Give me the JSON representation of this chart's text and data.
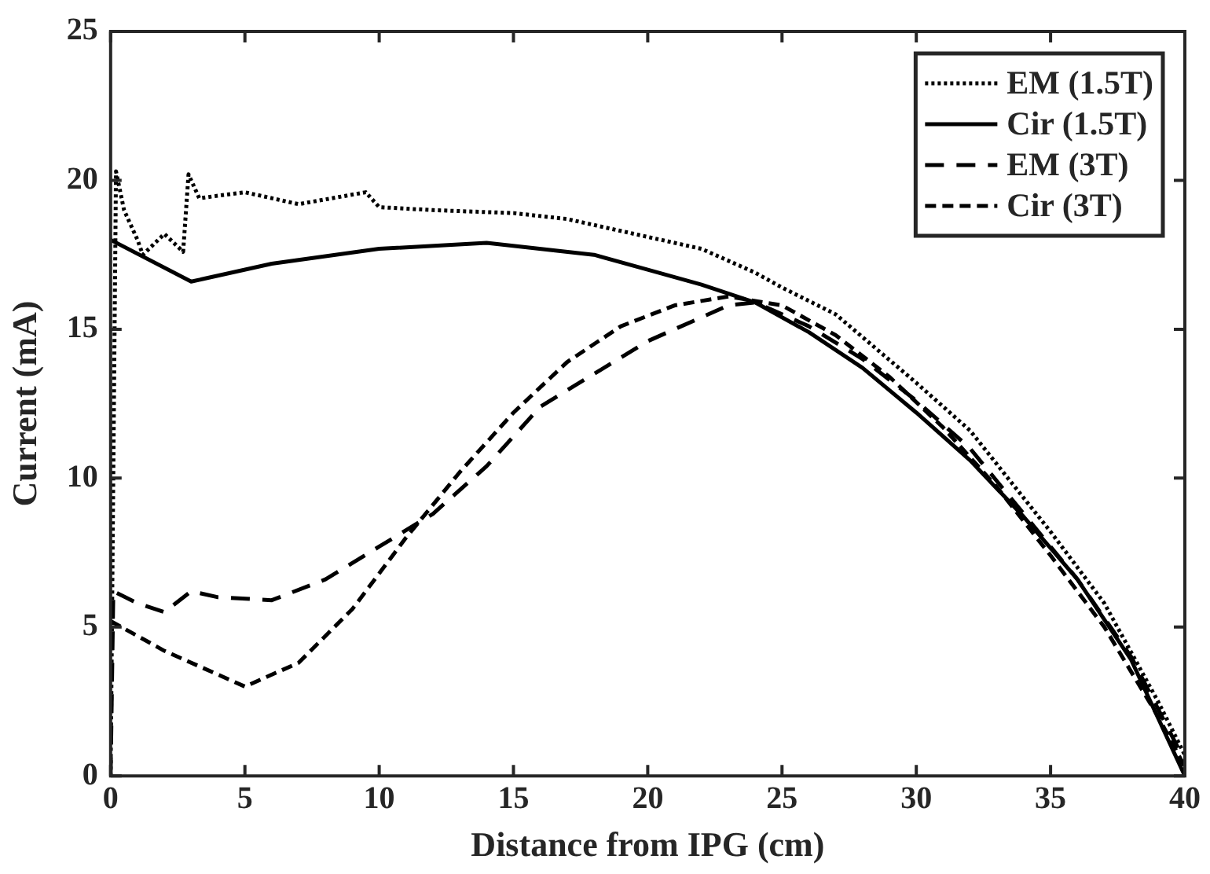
{
  "chart_data": {
    "type": "line",
    "xlabel": "Distance from IPG (cm)",
    "ylabel": "Current (mA)",
    "xlim": [
      0,
      40
    ],
    "ylim": [
      0,
      25
    ],
    "xticks": [
      0,
      5,
      10,
      15,
      20,
      25,
      30,
      35,
      40
    ],
    "yticks": [
      0,
      5,
      10,
      15,
      20,
      25
    ],
    "grid": false,
    "legend": "top right",
    "marker": "none",
    "series": [
      {
        "name": "EM (1.5T)",
        "color": "#000000",
        "line_style": "dotted",
        "x": [
          0,
          0.2,
          0.5,
          1,
          1.2,
          2,
          2.7,
          2.9,
          3.3,
          5,
          7,
          9.5,
          10,
          12,
          15,
          17,
          20,
          22,
          24,
          25,
          27,
          30,
          32,
          35,
          37,
          39,
          40
        ],
        "values": [
          0,
          20.3,
          19,
          18,
          17.5,
          18.2,
          17.6,
          20.2,
          19.4,
          19.6,
          19.2,
          19.6,
          19.1,
          19,
          18.9,
          18.7,
          18.1,
          17.7,
          16.9,
          16.4,
          15.5,
          13.2,
          11.6,
          8.2,
          5.8,
          2.5,
          0.7
        ]
      },
      {
        "name": "Cir (1.5T)",
        "color": "#000000",
        "line_style": "solid",
        "x": [
          0,
          3,
          6,
          10,
          14,
          18,
          20,
          22,
          24,
          26,
          28,
          30,
          32,
          34,
          36,
          38,
          40
        ],
        "values": [
          18,
          16.6,
          17.2,
          17.7,
          17.9,
          17.5,
          17,
          16.5,
          15.9,
          14.9,
          13.7,
          12.2,
          10.6,
          8.7,
          6.6,
          3.9,
          0
        ]
      },
      {
        "name": "EM (3T)",
        "color": "#000000",
        "line_style": "dashed",
        "x": [
          0,
          0.1,
          1,
          2,
          3,
          4,
          6,
          8,
          10,
          12,
          14,
          16,
          18,
          20,
          22,
          23,
          24,
          26,
          28,
          30,
          32,
          34,
          36,
          38,
          40
        ],
        "values": [
          0,
          6.2,
          5.8,
          5.5,
          6.2,
          6,
          5.9,
          6.6,
          7.7,
          8.8,
          10.4,
          12.4,
          13.5,
          14.6,
          15.4,
          15.8,
          15.9,
          15.1,
          14,
          12.6,
          11,
          8.8,
          6.6,
          4,
          0.5
        ]
      },
      {
        "name": "Cir (3T)",
        "color": "#000000",
        "line_style": "dashed",
        "x": [
          0,
          2,
          5,
          7,
          9,
          11,
          13,
          15,
          17,
          19,
          21,
          23,
          25,
          27,
          29,
          31,
          33,
          35,
          37,
          39,
          40
        ],
        "values": [
          5.2,
          4.2,
          3,
          3.8,
          5.6,
          8,
          10.2,
          12.2,
          13.9,
          15.1,
          15.8,
          16.1,
          15.8,
          14.8,
          13.4,
          11.7,
          9.7,
          7.4,
          5,
          2,
          0.3
        ]
      }
    ]
  }
}
